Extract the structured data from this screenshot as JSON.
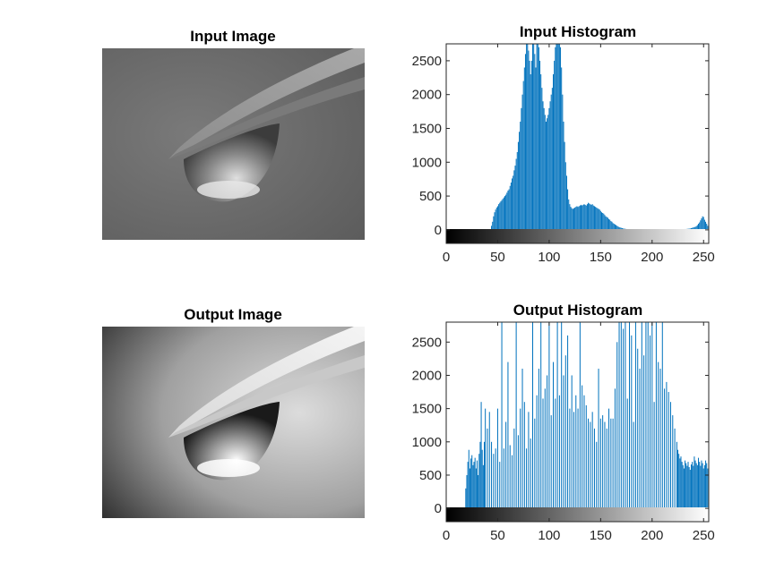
{
  "figure": {
    "panels": [
      {
        "title": "Input Image",
        "kind": "image",
        "variant": "input"
      },
      {
        "title": "Input Histogram",
        "kind": "histogram"
      },
      {
        "title": "Output Image",
        "kind": "image",
        "variant": "output"
      },
      {
        "title": "Output Histogram",
        "kind": "histogram"
      }
    ]
  },
  "chart_data": [
    {
      "type": "bar",
      "title": "Input Histogram",
      "xlabel": "",
      "ylabel": "",
      "xlim": [
        0,
        255
      ],
      "ylim": [
        -200,
        2750
      ],
      "xticks": [
        0,
        50,
        100,
        150,
        200,
        250
      ],
      "yticks": [
        0,
        500,
        1000,
        1500,
        2000,
        2500
      ],
      "bar_color": "#0072BD",
      "colorbar": "grayscale 0-255",
      "bins": [
        [
          44,
          60
        ],
        [
          45,
          120
        ],
        [
          46,
          200
        ],
        [
          47,
          260
        ],
        [
          48,
          300
        ],
        [
          49,
          330
        ],
        [
          50,
          350
        ],
        [
          51,
          380
        ],
        [
          52,
          400
        ],
        [
          53,
          420
        ],
        [
          54,
          440
        ],
        [
          55,
          460
        ],
        [
          56,
          480
        ],
        [
          57,
          500
        ],
        [
          58,
          520
        ],
        [
          59,
          550
        ],
        [
          60,
          580
        ],
        [
          61,
          600
        ],
        [
          62,
          650
        ],
        [
          63,
          700
        ],
        [
          64,
          760
        ],
        [
          65,
          800
        ],
        [
          66,
          880
        ],
        [
          67,
          950
        ],
        [
          68,
          1050
        ],
        [
          69,
          1150
        ],
        [
          70,
          1300
        ],
        [
          71,
          1450
        ],
        [
          72,
          1600
        ],
        [
          73,
          1800
        ],
        [
          74,
          2000
        ],
        [
          75,
          2200
        ],
        [
          76,
          2400
        ],
        [
          77,
          2600
        ],
        [
          78,
          2800
        ],
        [
          79,
          2800
        ],
        [
          80,
          2650
        ],
        [
          81,
          2500
        ],
        [
          82,
          2300
        ],
        [
          83,
          2500
        ],
        [
          84,
          2800
        ],
        [
          85,
          2800
        ],
        [
          86,
          2600
        ],
        [
          87,
          2400
        ],
        [
          88,
          2800
        ],
        [
          89,
          2800
        ],
        [
          90,
          2700
        ],
        [
          91,
          2500
        ],
        [
          92,
          2300
        ],
        [
          93,
          2100
        ],
        [
          94,
          1900
        ],
        [
          95,
          1800
        ],
        [
          96,
          1700
        ],
        [
          97,
          1600
        ],
        [
          98,
          1650
        ],
        [
          99,
          1700
        ],
        [
          100,
          1800
        ],
        [
          101,
          1900
        ],
        [
          102,
          2000
        ],
        [
          103,
          2100
        ],
        [
          104,
          2300
        ],
        [
          105,
          2500
        ],
        [
          106,
          2700
        ],
        [
          107,
          2800
        ],
        [
          108,
          2800
        ],
        [
          109,
          2800
        ],
        [
          110,
          2800
        ],
        [
          111,
          2700
        ],
        [
          112,
          2400
        ],
        [
          113,
          2000
        ],
        [
          114,
          1600
        ],
        [
          115,
          1300
        ],
        [
          116,
          1000
        ],
        [
          117,
          800
        ],
        [
          118,
          600
        ],
        [
          119,
          450
        ],
        [
          120,
          380
        ],
        [
          121,
          340
        ],
        [
          122,
          320
        ],
        [
          123,
          310
        ],
        [
          124,
          320
        ],
        [
          125,
          330
        ],
        [
          126,
          340
        ],
        [
          127,
          350
        ],
        [
          128,
          340
        ],
        [
          129,
          350
        ],
        [
          130,
          360
        ],
        [
          131,
          370
        ],
        [
          132,
          360
        ],
        [
          133,
          370
        ],
        [
          134,
          380
        ],
        [
          135,
          370
        ],
        [
          136,
          360
        ],
        [
          137,
          380
        ],
        [
          138,
          400
        ],
        [
          139,
          390
        ],
        [
          140,
          380
        ],
        [
          141,
          370
        ],
        [
          142,
          380
        ],
        [
          143,
          360
        ],
        [
          144,
          350
        ],
        [
          145,
          340
        ],
        [
          146,
          330
        ],
        [
          147,
          320
        ],
        [
          148,
          310
        ],
        [
          149,
          300
        ],
        [
          150,
          280
        ],
        [
          151,
          260
        ],
        [
          152,
          250
        ],
        [
          153,
          240
        ],
        [
          154,
          220
        ],
        [
          155,
          200
        ],
        [
          156,
          190
        ],
        [
          157,
          180
        ],
        [
          158,
          160
        ],
        [
          159,
          150
        ],
        [
          160,
          130
        ],
        [
          161,
          120
        ],
        [
          162,
          100
        ],
        [
          163,
          90
        ],
        [
          164,
          80
        ],
        [
          165,
          70
        ],
        [
          166,
          60
        ],
        [
          167,
          50
        ],
        [
          168,
          40
        ],
        [
          169,
          35
        ],
        [
          170,
          30
        ],
        [
          171,
          25
        ],
        [
          172,
          20
        ],
        [
          173,
          18
        ],
        [
          174,
          15
        ],
        [
          175,
          12
        ],
        [
          176,
          10
        ],
        [
          177,
          10
        ],
        [
          178,
          8
        ],
        [
          179,
          8
        ],
        [
          180,
          8
        ],
        [
          181,
          8
        ],
        [
          182,
          8
        ],
        [
          183,
          8
        ],
        [
          184,
          8
        ],
        [
          185,
          8
        ],
        [
          186,
          8
        ],
        [
          187,
          8
        ],
        [
          188,
          8
        ],
        [
          189,
          8
        ],
        [
          190,
          8
        ],
        [
          191,
          8
        ],
        [
          192,
          8
        ],
        [
          193,
          8
        ],
        [
          194,
          8
        ],
        [
          195,
          8
        ],
        [
          196,
          8
        ],
        [
          197,
          8
        ],
        [
          198,
          8
        ],
        [
          199,
          8
        ],
        [
          200,
          8
        ],
        [
          201,
          8
        ],
        [
          202,
          8
        ],
        [
          203,
          8
        ],
        [
          204,
          8
        ],
        [
          205,
          8
        ],
        [
          206,
          8
        ],
        [
          207,
          8
        ],
        [
          208,
          8
        ],
        [
          209,
          8
        ],
        [
          210,
          8
        ],
        [
          211,
          8
        ],
        [
          212,
          8
        ],
        [
          213,
          8
        ],
        [
          214,
          8
        ],
        [
          215,
          8
        ],
        [
          216,
          8
        ],
        [
          217,
          8
        ],
        [
          218,
          8
        ],
        [
          219,
          8
        ],
        [
          220,
          8
        ],
        [
          221,
          8
        ],
        [
          222,
          8
        ],
        [
          223,
          8
        ],
        [
          224,
          8
        ],
        [
          225,
          8
        ],
        [
          226,
          8
        ],
        [
          227,
          8
        ],
        [
          228,
          8
        ],
        [
          229,
          8
        ],
        [
          230,
          10
        ],
        [
          231,
          10
        ],
        [
          232,
          12
        ],
        [
          233,
          12
        ],
        [
          234,
          14
        ],
        [
          235,
          16
        ],
        [
          236,
          18
        ],
        [
          237,
          20
        ],
        [
          238,
          25
        ],
        [
          239,
          30
        ],
        [
          240,
          35
        ],
        [
          241,
          40
        ],
        [
          242,
          45
        ],
        [
          243,
          55
        ],
        [
          244,
          70
        ],
        [
          245,
          90
        ],
        [
          246,
          110
        ],
        [
          247,
          140
        ],
        [
          248,
          170
        ],
        [
          249,
          200
        ],
        [
          250,
          190
        ],
        [
          251,
          150
        ],
        [
          252,
          120
        ],
        [
          253,
          90
        ],
        [
          254,
          60
        ]
      ]
    },
    {
      "type": "bar",
      "title": "Output Histogram",
      "xlabel": "",
      "ylabel": "",
      "xlim": [
        0,
        255
      ],
      "ylim": [
        -200,
        2800
      ],
      "xticks": [
        0,
        50,
        100,
        150,
        200,
        250
      ],
      "yticks": [
        0,
        500,
        1000,
        1500,
        2000,
        2500
      ],
      "bar_color": "#0072BD",
      "colorbar": "grayscale 0-255",
      "bins": [
        [
          19,
          300
        ],
        [
          20,
          500
        ],
        [
          21,
          700
        ],
        [
          22,
          880
        ],
        [
          23,
          600
        ],
        [
          24,
          750
        ],
        [
          25,
          800
        ],
        [
          26,
          650
        ],
        [
          27,
          700
        ],
        [
          28,
          760
        ],
        [
          29,
          600
        ],
        [
          30,
          720
        ],
        [
          31,
          500
        ],
        [
          32,
          820
        ],
        [
          33,
          1000
        ],
        [
          34,
          1600
        ],
        [
          35,
          880
        ],
        [
          36,
          650
        ],
        [
          37,
          1000
        ],
        [
          38,
          1500
        ],
        [
          40,
          1200
        ],
        [
          42,
          1450
        ],
        [
          44,
          1000
        ],
        [
          46,
          820
        ],
        [
          48,
          900
        ],
        [
          50,
          1500
        ],
        [
          52,
          700
        ],
        [
          54,
          2800
        ],
        [
          56,
          900
        ],
        [
          58,
          1300
        ],
        [
          60,
          2200
        ],
        [
          62,
          950
        ],
        [
          64,
          800
        ],
        [
          66,
          1200
        ],
        [
          68,
          2800
        ],
        [
          70,
          1100
        ],
        [
          72,
          1500
        ],
        [
          74,
          2100
        ],
        [
          76,
          1600
        ],
        [
          78,
          900
        ],
        [
          80,
          1450
        ],
        [
          82,
          1050
        ],
        [
          84,
          2800
        ],
        [
          86,
          1350
        ],
        [
          88,
          1700
        ],
        [
          90,
          2100
        ],
        [
          92,
          2800
        ],
        [
          94,
          1650
        ],
        [
          96,
          1800
        ],
        [
          98,
          2000
        ],
        [
          100,
          2800
        ],
        [
          102,
          1400
        ],
        [
          104,
          2200
        ],
        [
          106,
          1650
        ],
        [
          108,
          2800
        ],
        [
          110,
          1700
        ],
        [
          112,
          2800
        ],
        [
          114,
          2000
        ],
        [
          116,
          2300
        ],
        [
          118,
          2600
        ],
        [
          120,
          1500
        ],
        [
          122,
          2000
        ],
        [
          124,
          1450
        ],
        [
          126,
          1700
        ],
        [
          128,
          1500
        ],
        [
          130,
          2800
        ],
        [
          132,
          1850
        ],
        [
          134,
          1700
        ],
        [
          136,
          1550
        ],
        [
          138,
          1350
        ],
        [
          140,
          1300
        ],
        [
          142,
          1450
        ],
        [
          144,
          1200
        ],
        [
          146,
          1000
        ],
        [
          148,
          2100
        ],
        [
          150,
          1350
        ],
        [
          152,
          1400
        ],
        [
          154,
          1300
        ],
        [
          156,
          1200
        ],
        [
          158,
          1500
        ],
        [
          160,
          1350
        ],
        [
          162,
          1350
        ],
        [
          164,
          1800
        ],
        [
          166,
          2500
        ],
        [
          168,
          2800
        ],
        [
          170,
          2800
        ],
        [
          172,
          2700
        ],
        [
          174,
          2800
        ],
        [
          176,
          1650
        ],
        [
          178,
          2800
        ],
        [
          180,
          2600
        ],
        [
          182,
          1300
        ],
        [
          184,
          2800
        ],
        [
          186,
          2400
        ],
        [
          188,
          2100
        ],
        [
          190,
          2800
        ],
        [
          192,
          2300
        ],
        [
          194,
          2800
        ],
        [
          196,
          2800
        ],
        [
          198,
          2600
        ],
        [
          200,
          2800
        ],
        [
          202,
          1600
        ],
        [
          204,
          2800
        ],
        [
          206,
          2200
        ],
        [
          208,
          2100
        ],
        [
          210,
          2800
        ],
        [
          212,
          1800
        ],
        [
          214,
          1900
        ],
        [
          216,
          1750
        ],
        [
          218,
          1600
        ],
        [
          220,
          1400
        ],
        [
          222,
          1200
        ],
        [
          224,
          1000
        ],
        [
          225,
          880
        ],
        [
          226,
          820
        ],
        [
          227,
          750
        ],
        [
          228,
          780
        ],
        [
          229,
          700
        ],
        [
          230,
          650
        ],
        [
          231,
          600
        ],
        [
          232,
          720
        ],
        [
          233,
          680
        ],
        [
          234,
          640
        ],
        [
          235,
          700
        ],
        [
          236,
          620
        ],
        [
          237,
          580
        ],
        [
          238,
          660
        ],
        [
          239,
          700
        ],
        [
          240,
          640
        ],
        [
          241,
          780
        ],
        [
          242,
          720
        ],
        [
          243,
          680
        ],
        [
          244,
          650
        ],
        [
          245,
          760
        ],
        [
          246,
          700
        ],
        [
          247,
          640
        ],
        [
          248,
          720
        ],
        [
          249,
          680
        ],
        [
          250,
          600
        ],
        [
          251,
          650
        ],
        [
          252,
          720
        ],
        [
          253,
          680
        ],
        [
          254,
          600
        ],
        [
          255,
          620
        ]
      ]
    }
  ]
}
